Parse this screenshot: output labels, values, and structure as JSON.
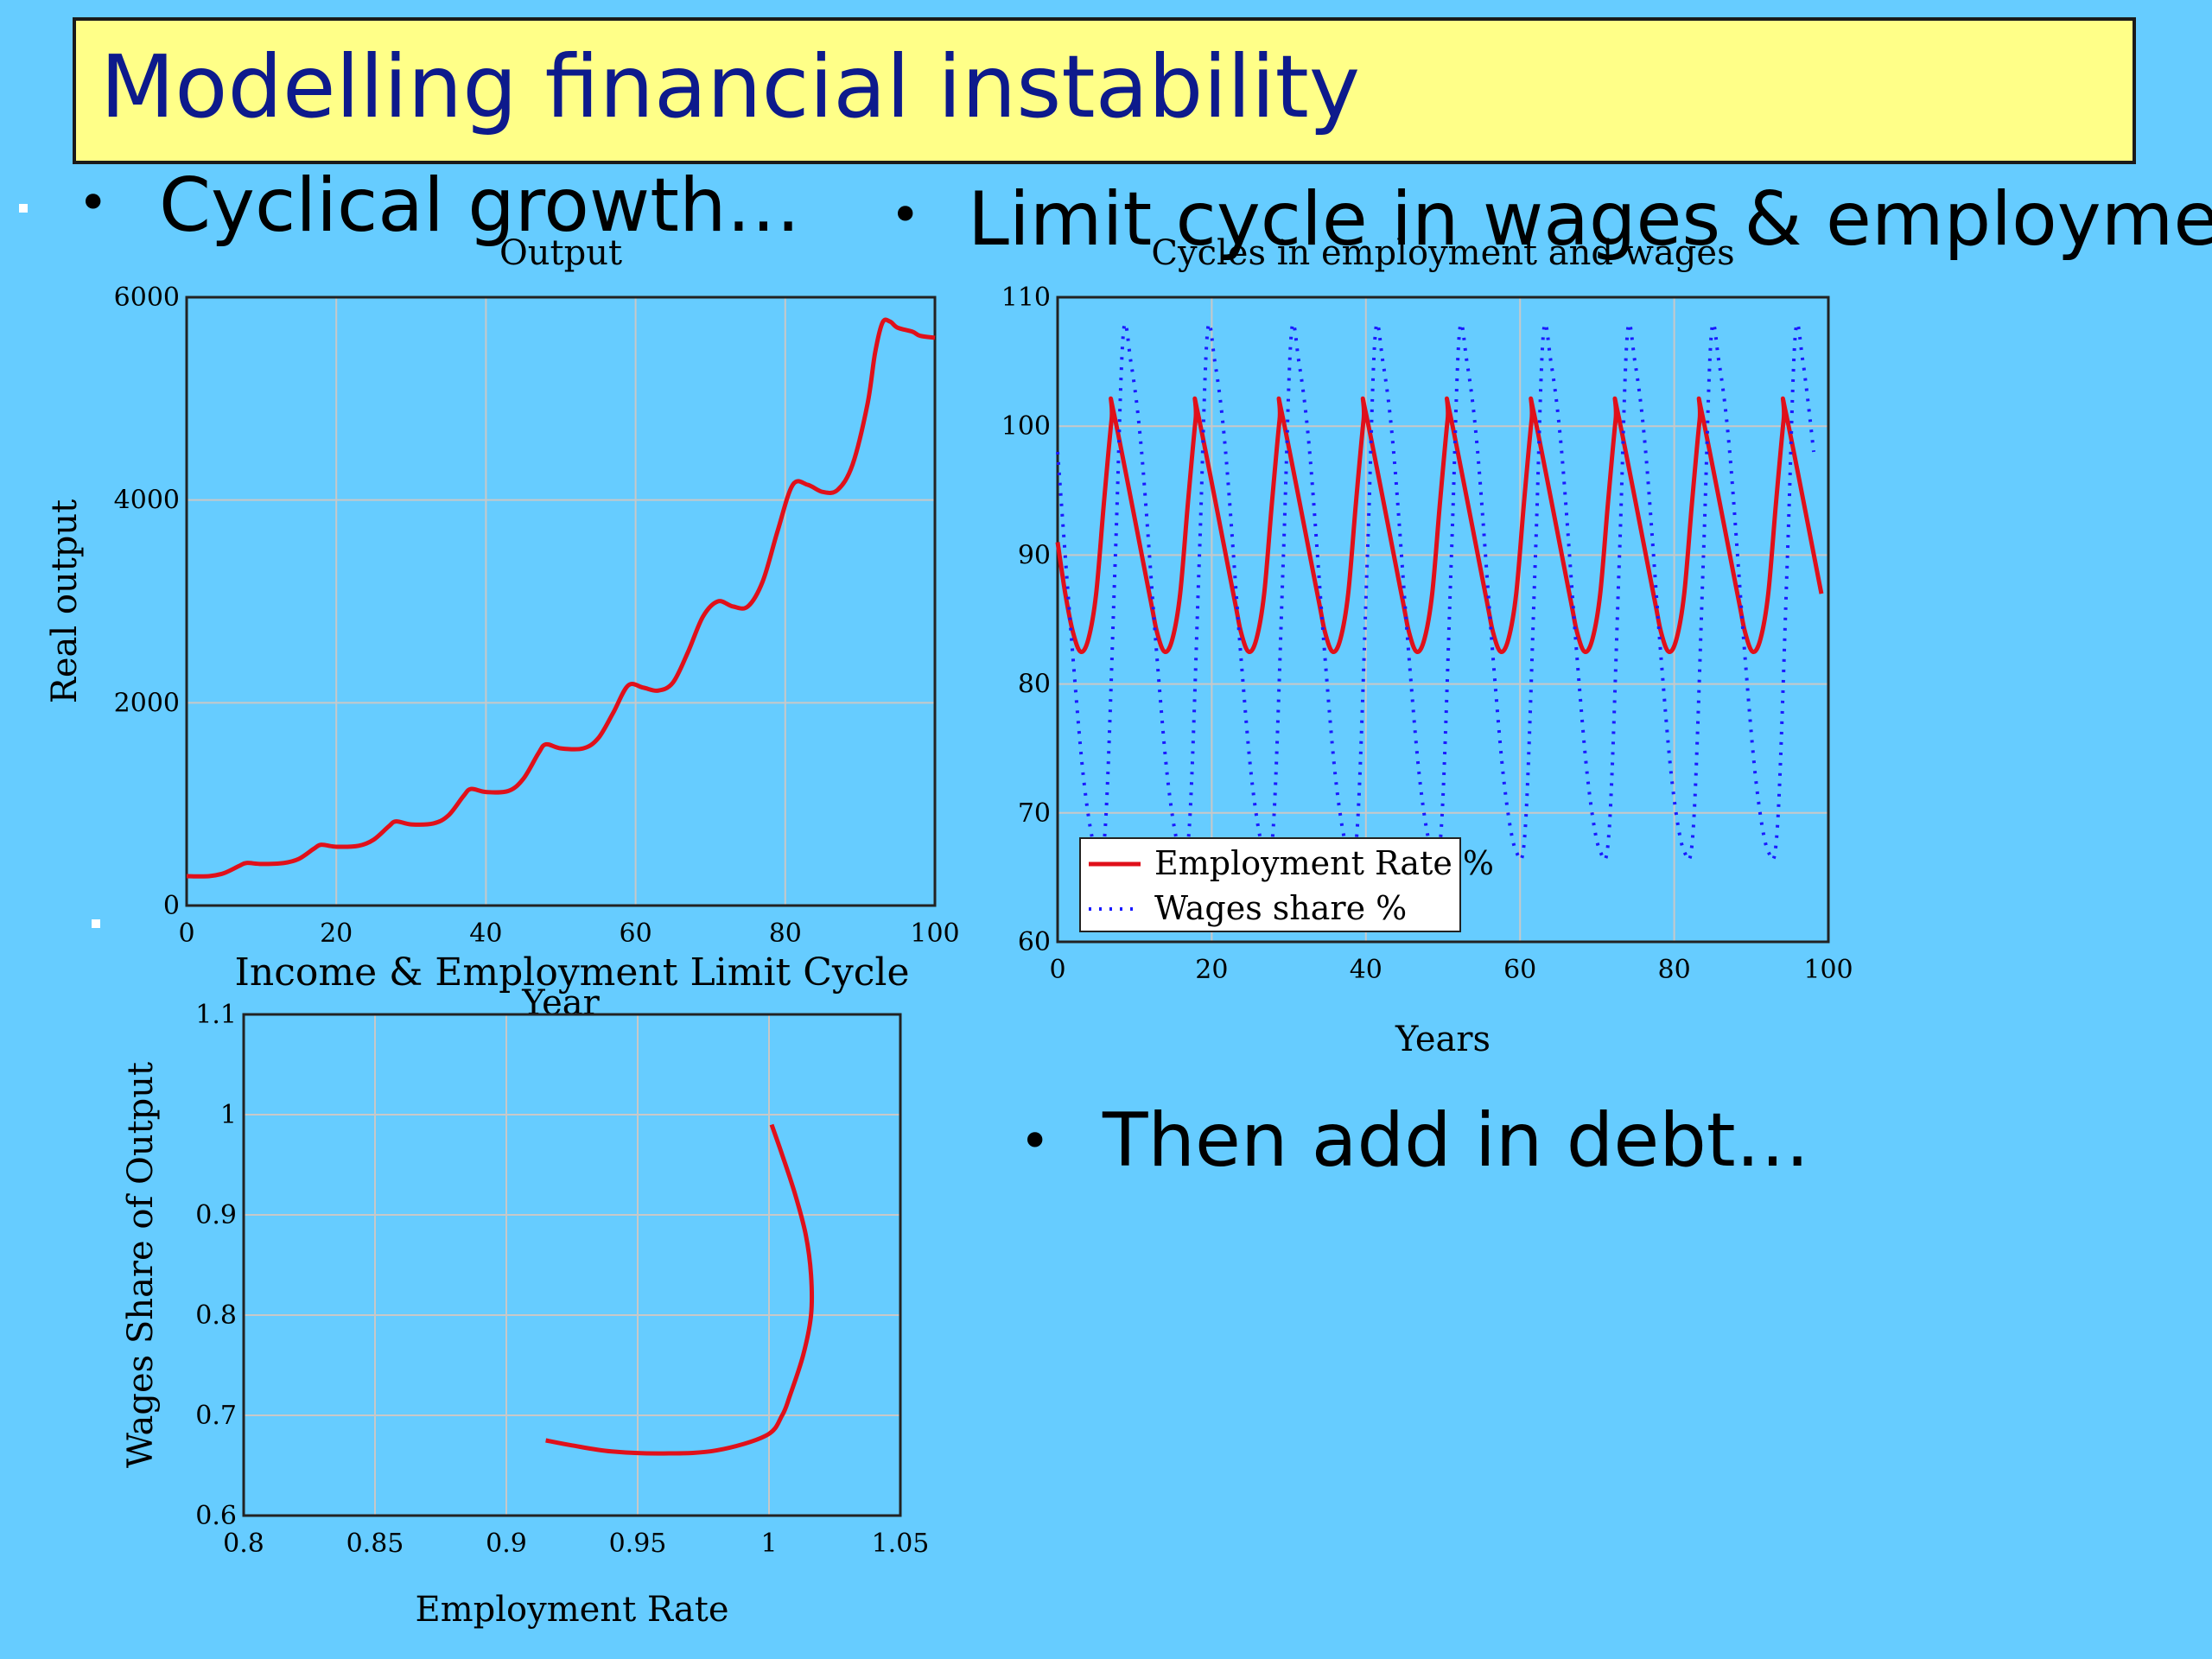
{
  "slide": {
    "title": "Modelling financial instability",
    "bullets": [
      {
        "text": "Cyclical growth…"
      },
      {
        "text": "Limit cycle in wages & employment"
      },
      {
        "text": "Then add in debt…"
      }
    ],
    "bullet_glyph": "•"
  },
  "colors": {
    "background": "#66ccff",
    "title_box": "#ffff88",
    "title_text": "#0d1a8c",
    "employment_series": "#e0101a",
    "wages_series": "#1a1aff",
    "grid": "#c8c8c8"
  },
  "chart_data": [
    {
      "type": "line",
      "title": "Output",
      "xlabel": "Year",
      "ylabel": "Real output",
      "xlim": [
        0,
        100
      ],
      "ylim": [
        0,
        6000
      ],
      "xticks": [
        0,
        20,
        40,
        60,
        80,
        100
      ],
      "yticks": [
        0,
        2000,
        4000,
        6000
      ],
      "grid": true,
      "series": [
        {
          "color": "#e0101a",
          "x": [
            0,
            3,
            5,
            7,
            8,
            10,
            13,
            15,
            17,
            18,
            20,
            23,
            25,
            27,
            28,
            30,
            33,
            35,
            37,
            38,
            40,
            43,
            45,
            47,
            48,
            50,
            53,
            55,
            57,
            59,
            61,
            63,
            65,
            67,
            69,
            71,
            73,
            75,
            77,
            79,
            81,
            83,
            85,
            87,
            89,
            91,
            92,
            93,
            94,
            95,
            97,
            98,
            100
          ],
          "y": [
            290,
            290,
            320,
            390,
            420,
            410,
            420,
            460,
            560,
            600,
            580,
            590,
            650,
            780,
            830,
            800,
            810,
            890,
            1080,
            1150,
            1120,
            1130,
            1250,
            1500,
            1590,
            1550,
            1550,
            1650,
            1900,
            2170,
            2150,
            2120,
            2200,
            2500,
            2850,
            3000,
            2950,
            2950,
            3200,
            3700,
            4150,
            4150,
            4080,
            4100,
            4350,
            4950,
            5450,
            5750,
            5760,
            5700,
            5660,
            5620,
            5600
          ]
        }
      ]
    },
    {
      "type": "line",
      "title": "Cycles in employment and wages",
      "xlabel": "Years",
      "ylabel": "",
      "xlim": [
        0,
        100
      ],
      "ylim": [
        60,
        110
      ],
      "xticks": [
        0,
        20,
        40,
        60,
        80,
        100
      ],
      "yticks": [
        60,
        70,
        80,
        90,
        100,
        110
      ],
      "grid": true,
      "legend": "bottom-left",
      "cycle_period": 10.9,
      "series": [
        {
          "name": "Employment Rate %",
          "style": "solid",
          "color": "#e0101a",
          "x": [
            0,
            1,
            2,
            3,
            4,
            5,
            6,
            7,
            7.3
          ],
          "y": [
            91,
            87,
            84,
            82.5,
            83.5,
            87,
            94,
            100.5,
            101
          ],
          "repeat": "periodic"
        },
        {
          "name": "Wages share %",
          "style": "dotted",
          "color": "#1a1aff",
          "x": [
            0,
            2,
            3.5,
            5,
            6.2,
            7.5,
            8.5,
            9.5,
            10.9
          ],
          "y": [
            98,
            82,
            72,
            67,
            69,
            90,
            107,
            105,
            98
          ],
          "repeat": "periodic"
        }
      ]
    },
    {
      "type": "line",
      "title": "Income & Employment Limit Cycle",
      "xlabel": "Employment Rate",
      "ylabel": "Wages Share of Output",
      "xlim": [
        0.8,
        1.05
      ],
      "ylim": [
        0.6,
        1.1
      ],
      "xticks": [
        0.8,
        0.85,
        0.9,
        0.95,
        1,
        1.05
      ],
      "yticks": [
        0.6,
        0.7,
        0.8,
        0.9,
        1,
        1.1
      ],
      "grid": true,
      "series": [
        {
          "color": "#e0101a",
          "x": [
            1.001,
            1.005,
            1.01,
            1.014,
            1.016,
            1.016,
            1.013,
            1.008,
            1.005,
            0.999,
            0.98,
            0.96,
            0.94,
            0.925,
            0.915
          ],
          "y": [
            0.99,
            0.96,
            0.92,
            0.88,
            0.84,
            0.8,
            0.76,
            0.72,
            0.7,
            0.68,
            0.665,
            0.662,
            0.664,
            0.67,
            0.675
          ]
        }
      ]
    }
  ]
}
